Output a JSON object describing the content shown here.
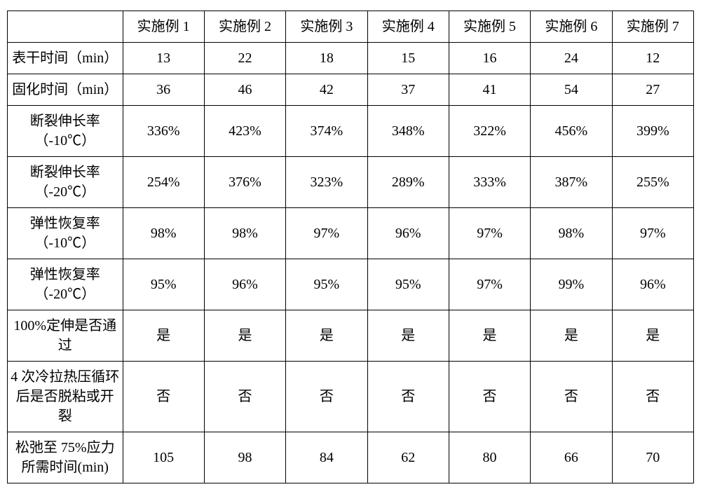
{
  "table": {
    "columns": [
      "",
      "实施例 1",
      "实施例 2",
      "实施例 3",
      "实施例 4",
      "实施例 5",
      "实施例 6",
      "实施例 7"
    ],
    "rows": [
      {
        "label": "表干时间（min）",
        "values": [
          "13",
          "22",
          "18",
          "15",
          "16",
          "24",
          "12"
        ]
      },
      {
        "label": "固化时间（min）",
        "values": [
          "36",
          "46",
          "42",
          "37",
          "41",
          "54",
          "27"
        ]
      },
      {
        "label": "断裂伸长率（-10℃）",
        "values": [
          "336%",
          "423%",
          "374%",
          "348%",
          "322%",
          "456%",
          "399%"
        ]
      },
      {
        "label": "断裂伸长率（-20℃）",
        "values": [
          "254%",
          "376%",
          "323%",
          "289%",
          "333%",
          "387%",
          "255%"
        ]
      },
      {
        "label": "弹性恢复率（-10℃）",
        "values": [
          "98%",
          "98%",
          "97%",
          "96%",
          "97%",
          "98%",
          "97%"
        ]
      },
      {
        "label": "弹性恢复率（-20℃）",
        "values": [
          "95%",
          "96%",
          "95%",
          "95%",
          "97%",
          "99%",
          "96%"
        ]
      },
      {
        "label": "100%定伸是否通过",
        "values": [
          "是",
          "是",
          "是",
          "是",
          "是",
          "是",
          "是"
        ]
      },
      {
        "label": "4 次冷拉热压循环后是否脱粘或开裂",
        "values": [
          "否",
          "否",
          "否",
          "否",
          "否",
          "否",
          "否"
        ]
      },
      {
        "label": "松弛至 75%应力所需时间(min)",
        "values": [
          "105",
          "98",
          "84",
          "62",
          "80",
          "66",
          "70"
        ]
      }
    ],
    "border_color": "#000000",
    "background_color": "#ffffff",
    "font_size": 20
  }
}
